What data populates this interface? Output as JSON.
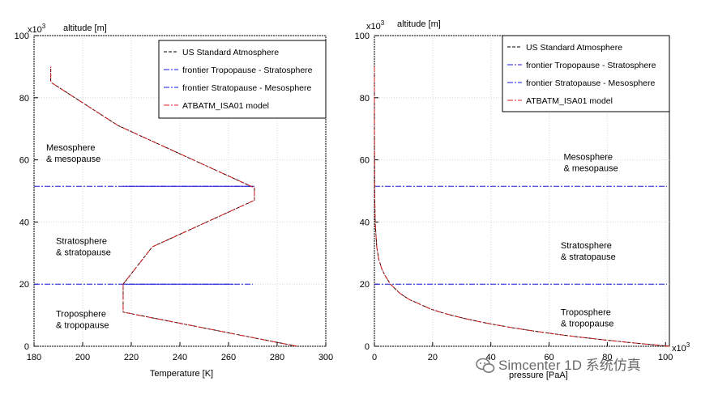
{
  "chart_data": [
    {
      "type": "line",
      "title": "",
      "xlabel": "Temperature [K]",
      "ylabel": "altitude [m]",
      "y_multiplier": "x10",
      "y_multiplier_exp": "3",
      "xlim": [
        180,
        300
      ],
      "ylim": [
        0,
        100
      ],
      "xticks": [
        "180",
        "200",
        "220",
        "240",
        "260",
        "280",
        "300"
      ],
      "yticks": [
        "0",
        "20",
        "40",
        "60",
        "80",
        "100"
      ],
      "legend": [
        {
          "label": "US Standard Atmosphere",
          "color": "#000000",
          "style": "dashed"
        },
        {
          "label": "frontier Tropopause - Stratosphere",
          "color": "#1a1ad6",
          "style": "dashdot"
        },
        {
          "label": "frontier Stratopause - Mesosphere",
          "color": "#1a1ad6",
          "style": "dashdot"
        },
        {
          "label": "ATBATM_ISA01 model",
          "color": "#d42020",
          "style": "dashdot"
        }
      ],
      "regions": [
        {
          "line1": "Mesosphere",
          "line2": "& mesopause",
          "x": 185,
          "y": 63
        },
        {
          "line1": "Stratosphere",
          "line2": "& stratopause",
          "x": 189,
          "y": 33
        },
        {
          "line1": "Troposphere",
          "line2": "& tropopause",
          "x": 189,
          "y": 9.5
        }
      ],
      "series": [
        {
          "name": "US Standard Atmosphere",
          "x": [
            288.15,
            216.65,
            216.65,
            228.65,
            270.65,
            270.65,
            214.65,
            186.87,
            186.87
          ],
          "y": [
            0,
            11,
            20,
            32,
            47,
            51,
            71,
            85,
            90
          ]
        },
        {
          "name": "ATBATM_ISA01 model",
          "x": [
            288.15,
            216.65,
            216.65,
            228.65,
            270.65,
            270.65,
            214.65,
            186.87,
            186.87
          ],
          "y": [
            0,
            11,
            20,
            32,
            47,
            51,
            71,
            85,
            90
          ]
        }
      ],
      "hlines": [
        {
          "name": "frontier Tropopause - Stratosphere",
          "y": 20,
          "x_from": 180,
          "x_to": 270
        },
        {
          "name": "frontier Stratopause - Mesosphere",
          "y": 51.5,
          "x_from": 180,
          "x_to": 270
        }
      ]
    },
    {
      "type": "line",
      "title": "",
      "xlabel": "pressure [PaA]",
      "ylabel": "altitude [m]",
      "y_multiplier": "x10",
      "y_multiplier_exp": "3",
      "x_multiplier": "x10",
      "x_multiplier_exp": "3",
      "xlim": [
        0,
        101.325
      ],
      "ylim": [
        0,
        100
      ],
      "xticks": [
        "0",
        "20",
        "40",
        "60",
        "80",
        "100"
      ],
      "yticks": [
        "0",
        "20",
        "40",
        "60",
        "80",
        "100"
      ],
      "legend": [
        {
          "label": "US Standard Atmosphere",
          "color": "#000000",
          "style": "dashed"
        },
        {
          "label": "frontier Tropopause - Stratosphere",
          "color": "#1a1ad6",
          "style": "dashdot"
        },
        {
          "label": "frontier Stratopause - Mesosphere",
          "color": "#1a1ad6",
          "style": "dashdot"
        },
        {
          "label": "ATBATM_ISA01 model",
          "color": "#d42020",
          "style": "dashdot"
        }
      ],
      "regions": [
        {
          "line1": "Mesosphere",
          "line2": "& mesopause",
          "x": 65,
          "y": 60
        },
        {
          "line1": "Stratosphere",
          "line2": "& stratopause",
          "x": 64,
          "y": 31.5
        },
        {
          "line1": "Troposphere",
          "line2": "& tropopause",
          "x": 64,
          "y": 10
        }
      ],
      "series": [
        {
          "name": "US Standard Atmosphere",
          "x": [
            101.325,
            89.87,
            79.5,
            70.1,
            61.6,
            54.0,
            47.2,
            41.1,
            35.6,
            30.7,
            26.4,
            22.6,
            19.3,
            12.1,
            8.8,
            5.5,
            3.5,
            2.5,
            1.5,
            0.8,
            0.25,
            0.08,
            0.01,
            0.001
          ],
          "y": [
            0,
            1,
            2,
            3,
            4,
            5,
            6,
            7,
            8,
            9,
            10,
            11,
            12,
            15,
            17,
            20,
            23,
            25,
            28,
            32,
            40,
            50,
            70,
            90
          ]
        },
        {
          "name": "ATBATM_ISA01 model",
          "x": [
            101.325,
            89.87,
            79.5,
            70.1,
            61.6,
            54.0,
            47.2,
            41.1,
            35.6,
            30.7,
            26.4,
            22.6,
            19.3,
            12.1,
            8.8,
            5.5,
            3.5,
            2.5,
            1.5,
            0.8,
            0.25,
            0.08,
            0.01,
            0.001
          ],
          "y": [
            0,
            1,
            2,
            3,
            4,
            5,
            6,
            7,
            8,
            9,
            10,
            11,
            12,
            15,
            17,
            20,
            23,
            25,
            28,
            32,
            40,
            50,
            70,
            90
          ]
        }
      ],
      "hlines": [
        {
          "name": "frontier Tropopause - Stratosphere",
          "y": 20,
          "x_from": 0,
          "x_to": 100.5
        },
        {
          "name": "frontier Stratopause - Mesosphere",
          "y": 51.5,
          "x_from": 0,
          "x_to": 100.5
        }
      ]
    }
  ],
  "watermark": {
    "text": "Simcenter 1D 系统仿真",
    "icon": "wechat-icon"
  }
}
